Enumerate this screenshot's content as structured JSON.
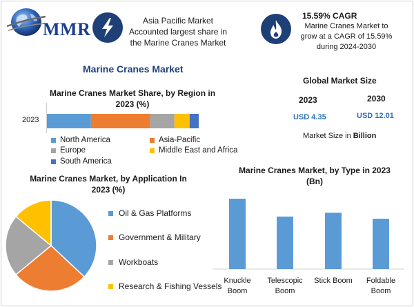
{
  "brand": {
    "logo_text": "MMR"
  },
  "header": {
    "item1_text": "Asia Pacific Market Accounted largest share in the Marine Cranes Market",
    "item2_title": "15.59% CAGR",
    "item2_text": "Marine Cranes Market to grow at a CAGR of 15.59% during 2024-2030",
    "icons": [
      "lightning-icon",
      "flame-icon"
    ],
    "icon_circle_color": "#1f3f77"
  },
  "main_title": "Marine Cranes Market",
  "global_market": {
    "title": "Global Market Size",
    "years": [
      "2023",
      "2030"
    ],
    "values": [
      "USD 4.35",
      "USD 12.01"
    ],
    "note_prefix": "Market Size in ",
    "note_bold": "Billion"
  },
  "colors": {
    "North America": "#5b9bd5",
    "Asia-Pacific": "#ed7d31",
    "Europe": "#a5a5a5",
    "Middle East and Africa": "#ffc000",
    "South America": "#4472c4"
  },
  "chart_data": [
    {
      "type": "bar",
      "orientation": "horizontal-stacked",
      "title": "Marine Cranes Market Share, by Region in 2023 (%)",
      "categories": [
        "2023"
      ],
      "series": [
        {
          "name": "North America",
          "values": [
            29
          ]
        },
        {
          "name": "Asia-Pacific",
          "values": [
            39
          ]
        },
        {
          "name": "Europe",
          "values": [
            16
          ]
        },
        {
          "name": "Middle East and Africa",
          "values": [
            10
          ]
        },
        {
          "name": "South America",
          "values": [
            6
          ]
        }
      ],
      "legend": "bottom"
    },
    {
      "type": "pie",
      "title": "Marine Cranes Market, by Application In 2023 (%)",
      "labels": [
        "Oil & Gas Platforms",
        "Government & Military",
        "Workboats",
        "Research & Fishing Vessels"
      ],
      "values": [
        37,
        27,
        22,
        14
      ],
      "colors": [
        "#5b9bd5",
        "#ed7d31",
        "#a5a5a5",
        "#ffc000"
      ],
      "legend": "right"
    },
    {
      "type": "bar",
      "title": "Marine Cranes Market, by Type in 2023 (Bn)",
      "categories": [
        "Knuckle Boom",
        "Telescopic Boom",
        "Stick Boom",
        "Foldable Boom"
      ],
      "values": [
        1.3,
        0.97,
        1.04,
        0.93
      ],
      "color": "#5b9bd5"
    }
  ]
}
